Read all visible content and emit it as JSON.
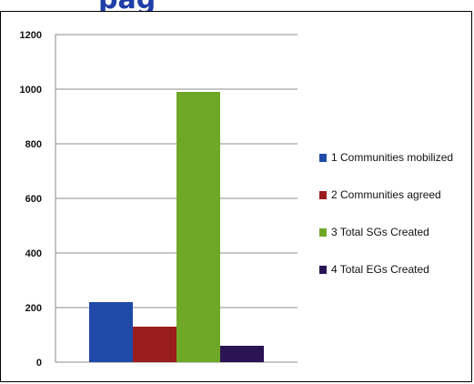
{
  "header": {
    "title_fragment": "pag"
  },
  "chart_data": {
    "type": "bar",
    "title": "",
    "xlabel": "",
    "ylabel": "",
    "ylim": [
      0,
      1200
    ],
    "yticks": [
      0,
      200,
      400,
      600,
      800,
      1000,
      1200
    ],
    "grid": true,
    "legend_position": "right",
    "categories": [
      ""
    ],
    "series": [
      {
        "name": "1 Communities mobilized",
        "values": [
          220
        ],
        "color": "#1f4aa8"
      },
      {
        "name": "2 Communities agreed",
        "values": [
          130
        ],
        "color": "#9b1c1c"
      },
      {
        "name": "3 Total SGs Created",
        "values": [
          990
        ],
        "color": "#6fa826"
      },
      {
        "name": "4 Total EGs Created",
        "values": [
          60
        ],
        "color": "#2a1454"
      }
    ]
  }
}
